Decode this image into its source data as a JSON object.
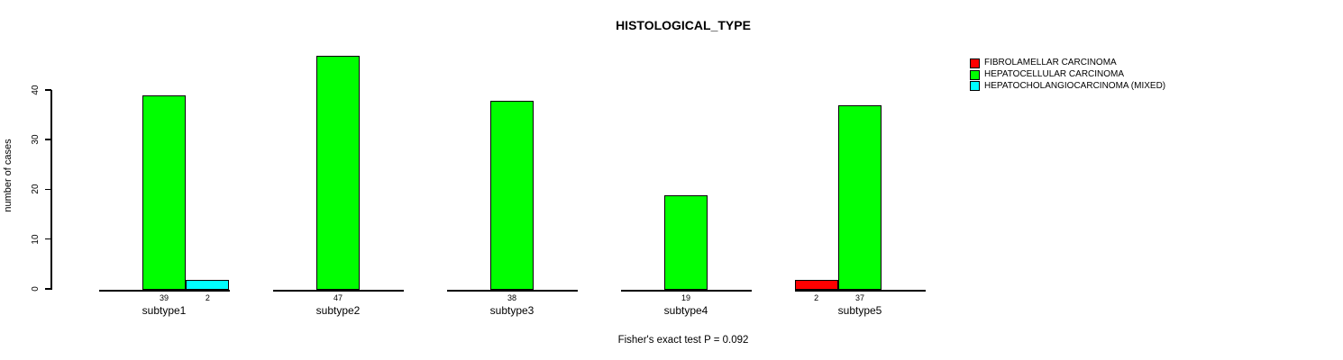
{
  "title": "HISTOLOGICAL_TYPE",
  "footer_note": "Fisher's exact test P = 0.092",
  "y_axis": {
    "label": "number of cases",
    "tick_labels": [
      "0",
      "10",
      "20",
      "30",
      "40"
    ]
  },
  "legend": {
    "items": [
      {
        "label": "FIBROLAMELLAR CARCINOMA",
        "color": "#ff0000"
      },
      {
        "label": "HEPATOCELLULAR CARCINOMA",
        "color": "#00ff00"
      },
      {
        "label": "HEPATOCHOLANGIOCARCINOMA (MIXED)",
        "color": "#00ffff"
      }
    ]
  },
  "chart_data": {
    "type": "bar",
    "title": "HISTOLOGICAL_TYPE",
    "xlabel": "",
    "ylabel": "number of cases",
    "categories": [
      "subtype1",
      "subtype2",
      "subtype3",
      "subtype4",
      "subtype5"
    ],
    "series": [
      {
        "name": "FIBROLAMELLAR CARCINOMA",
        "color": "#ff0000",
        "values": [
          0,
          0,
          0,
          0,
          2
        ]
      },
      {
        "name": "HEPATOCELLULAR CARCINOMA",
        "color": "#00ff00",
        "values": [
          39,
          47,
          38,
          19,
          37
        ]
      },
      {
        "name": "HEPATOCHOLANGIOCARCINOMA (MIXED)",
        "color": "#00ffff",
        "values": [
          2,
          0,
          0,
          0,
          0
        ]
      }
    ],
    "bar_value_labels_shown": true,
    "yticks": [
      0,
      10,
      20,
      30,
      40
    ],
    "ylim": [
      0,
      47
    ],
    "grid": false,
    "legend_position": "right",
    "annotation": "Fisher's exact test P = 0.092"
  }
}
